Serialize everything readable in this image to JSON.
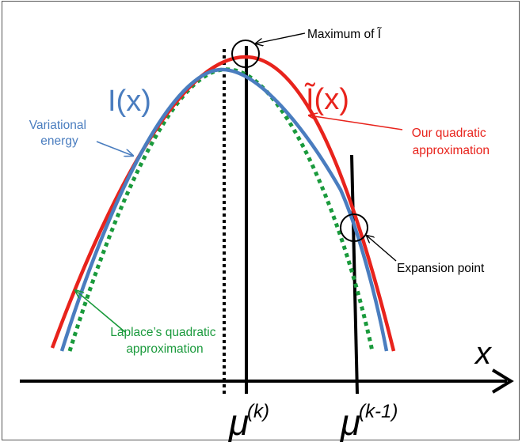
{
  "colors": {
    "variational": "#4a7dbf",
    "ours": "#e8231c",
    "laplace": "#1a9a3c",
    "ink": "#000000"
  },
  "labels": {
    "i_plain": "I(x)",
    "i_tilde": "Ĩ(x)",
    "variational_energy": [
      "Variational",
      "energy"
    ],
    "our_approx": [
      "Our quadratic",
      "approximation"
    ],
    "laplace_approx": [
      "Laplace’s quadratic",
      "approximation"
    ],
    "maximum_of": "Maximum of Ĩ",
    "expansion_point": "Expansion point",
    "x_axis": "x",
    "mu_k": "μ",
    "mu_k_sup": "(k)",
    "mu_k1": "μ",
    "mu_k1_sup": "(k-1)"
  }
}
